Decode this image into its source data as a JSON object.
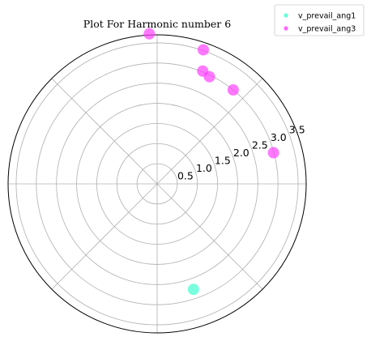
{
  "chart_data": {
    "type": "scatter",
    "projection": "polar",
    "title": "Plot For Harmonic number 6",
    "rmax": 3.7,
    "r_ticks": [
      0.5,
      1.0,
      1.5,
      2.0,
      2.5,
      3.0,
      3.5
    ],
    "r_tick_labels": [
      "0.5",
      "1.0",
      "1.5",
      "2.0",
      "2.5",
      "3.0",
      "3.5"
    ],
    "r_label_angle_deg": 22.5,
    "angular_grid_deg": [
      0,
      45,
      90,
      135,
      180,
      225,
      270,
      315
    ],
    "grid": true,
    "legend_position": "top-right",
    "series": [
      {
        "name": "v_prevail_ang1",
        "color": "#40ffd0",
        "points": [
          {
            "theta_deg": 289,
            "r": 2.77
          }
        ]
      },
      {
        "name": "v_prevail_ang3",
        "color": "#ff40ff",
        "points": [
          {
            "theta_deg": 93,
            "r": 3.73
          },
          {
            "theta_deg": 71,
            "r": 3.52
          },
          {
            "theta_deg": 64,
            "r": 2.96
          },
          {
            "theta_deg": 68,
            "r": 3.02
          },
          {
            "theta_deg": 51,
            "r": 3.0
          },
          {
            "theta_deg": 15,
            "r": 2.99
          }
        ]
      }
    ]
  }
}
